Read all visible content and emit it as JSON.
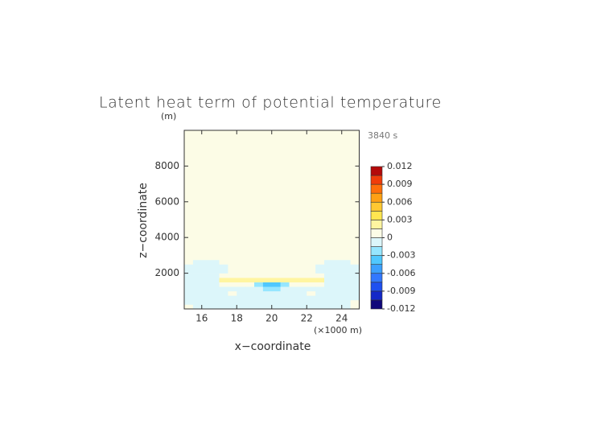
{
  "chart_data": {
    "type": "contour",
    "title": "Latent heat term of potential temperature",
    "y_unit": "(m)",
    "time_label": "3840 s",
    "x_label": "x−coordinate",
    "x_unit": "(×1000 m)",
    "y_label": "z−coordinate",
    "xlim": [
      15,
      25
    ],
    "ylim": [
      0,
      10000
    ],
    "xticks": [
      16,
      18,
      20,
      22,
      24
    ],
    "yticks": [
      2000,
      4000,
      6000,
      8000
    ],
    "x": [
      15.25,
      15.75,
      16.25,
      16.75,
      17.25,
      17.75,
      18.25,
      18.75,
      19.25,
      19.75,
      20.25,
      20.75,
      21.25,
      21.75,
      22.25,
      22.75,
      23.25,
      23.75,
      24.25,
      24.75
    ],
    "y": [
      125,
      375,
      625,
      875,
      1125,
      1375,
      1625,
      1875,
      2125,
      2375,
      2625,
      2875
    ],
    "z": [
      [
        0.0005,
        -0.0005,
        -0.0005,
        -0.0005,
        -0.0005,
        -0.0005,
        -0.0005,
        -0.0005,
        -0.0005,
        -0.0005,
        -0.0005,
        -0.0005,
        -0.0005,
        -0.0005,
        -0.0005,
        -0.0005,
        -0.0005,
        -0.0005,
        -0.0005,
        0.0005
      ],
      [
        -0.0005,
        -0.0005,
        -0.0005,
        -0.0005,
        -0.0005,
        -0.0005,
        -0.0005,
        -0.0005,
        -0.0005,
        -0.0005,
        -0.0005,
        -0.0005,
        -0.0005,
        -0.0005,
        -0.0005,
        -0.0005,
        -0.0005,
        -0.0005,
        -0.0005,
        0.0005
      ],
      [
        -0.0005,
        -0.0005,
        -0.0005,
        -0.0005,
        -0.0005,
        -0.0005,
        -0.0005,
        -0.0005,
        -0.0005,
        -0.0005,
        -0.0005,
        -0.0005,
        -0.0005,
        -0.0005,
        -0.0005,
        -0.0005,
        -0.0005,
        -0.0005,
        -0.0005,
        -0.0005
      ],
      [
        -0.0005,
        -0.0005,
        -0.0005,
        -0.0005,
        -0.0005,
        0.001,
        -0.0005,
        -0.0005,
        -0.0005,
        -0.0005,
        -0.0005,
        -0.0005,
        -0.0005,
        -0.0005,
        0.001,
        -0.0005,
        -0.0005,
        -0.0005,
        -0.0005,
        -0.0005
      ],
      [
        -0.0005,
        -0.0005,
        -0.0005,
        -0.0005,
        -0.0005,
        -0.0005,
        -0.0005,
        -0.0005,
        -0.0005,
        -0.002,
        -0.002,
        -0.0005,
        -0.0005,
        -0.0005,
        -0.0005,
        -0.0005,
        -0.0005,
        -0.0005,
        -0.0005,
        -0.0005
      ],
      [
        -0.0005,
        -0.0005,
        -0.0005,
        -0.0005,
        0.0005,
        0.0005,
        0.0005,
        0.0005,
        -0.002,
        -0.004,
        -0.004,
        -0.002,
        0.0005,
        0.0005,
        0.0005,
        0.0005,
        -0.0005,
        -0.0005,
        -0.0005,
        -0.0005
      ],
      [
        -0.0005,
        -0.0005,
        -0.0005,
        -0.0005,
        0.002,
        0.002,
        0.002,
        0.002,
        0.002,
        0.002,
        0.002,
        0.002,
        0.002,
        0.002,
        0.002,
        0.002,
        -0.0005,
        -0.0005,
        -0.0005,
        -0.0005
      ],
      [
        -0.0005,
        -0.0005,
        -0.0005,
        -0.0005,
        0.0005,
        0.0005,
        0.0005,
        0.0005,
        0.0005,
        0.0005,
        0.0005,
        0.0005,
        0.0005,
        0.0005,
        0.0005,
        0.0005,
        -0.0005,
        -0.0005,
        -0.0005,
        -0.0005
      ],
      [
        -0.0005,
        -0.0005,
        -0.0005,
        -0.0005,
        -0.0005,
        0.0005,
        0.0005,
        0.0005,
        0.0005,
        0.0005,
        0.0005,
        0.0005,
        0.0005,
        0.0005,
        0.0005,
        -0.0005,
        -0.0005,
        -0.0005,
        -0.0005,
        -0.0005
      ],
      [
        -0.0005,
        -0.0005,
        -0.0005,
        -0.0005,
        -0.0005,
        0.0005,
        0.0005,
        0.0005,
        0.0005,
        0.0005,
        0.0005,
        0.0005,
        0.0005,
        0.0005,
        0.0005,
        -0.0005,
        -0.0005,
        -0.0005,
        -0.0005,
        -0.0005
      ],
      [
        0.0005,
        -0.0005,
        -0.0005,
        -0.0005,
        0.0005,
        0.0005,
        0.0005,
        0.0005,
        0.0005,
        0.0005,
        0.0005,
        0.0005,
        0.0005,
        0.0005,
        0.0005,
        0.0005,
        -0.0005,
        -0.0005,
        -0.0005,
        0.0005
      ],
      [
        0.0005,
        0.0005,
        0.0005,
        0.0005,
        0.0005,
        0.0005,
        0.0005,
        0.0005,
        0.0005,
        0.0005,
        0.0005,
        0.0005,
        0.0005,
        0.0005,
        0.0005,
        0.0005,
        0.0005,
        0.0005,
        0.0005,
        0.0005
      ]
    ],
    "colorbar": {
      "levels": [
        -0.012,
        -0.0105,
        -0.009,
        -0.0075,
        -0.006,
        -0.0045,
        -0.003,
        -0.0015,
        0,
        0.0015,
        0.003,
        0.0045,
        0.006,
        0.0075,
        0.009,
        0.0105,
        0.012
      ],
      "colors": [
        "#10087a",
        "#1428c8",
        "#1e50f0",
        "#3278ff",
        "#3ca0ff",
        "#50c8ff",
        "#96e6ff",
        "#dcf6fa",
        "#fcfce6",
        "#fff5a0",
        "#ffe650",
        "#ffc832",
        "#ffa014",
        "#ff6e0a",
        "#f03c0a",
        "#b40a0a"
      ],
      "ticks": [
        0.012,
        0.009,
        0.006,
        0.003,
        0,
        -0.003,
        -0.006,
        -0.009,
        -0.012
      ]
    }
  }
}
